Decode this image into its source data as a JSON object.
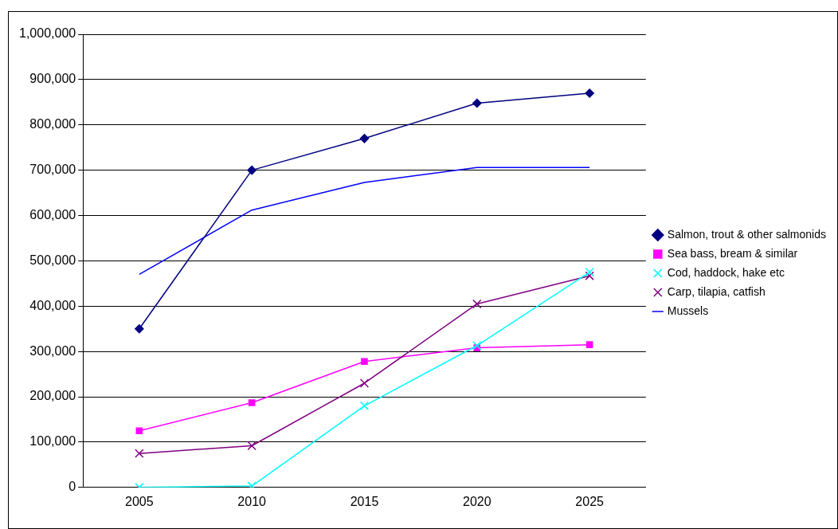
{
  "chart_data": {
    "type": "line",
    "categories": [
      "2005",
      "2010",
      "2015",
      "2020",
      "2025"
    ],
    "series": [
      {
        "name": "Salmon, trout & other salmonids",
        "color": "#000080",
        "marker": "diamond",
        "values": [
          350000,
          700000,
          770000,
          848000,
          870000
        ]
      },
      {
        "name": "Sea bass, bream & similar",
        "color": "#ff00ff",
        "marker": "square",
        "values": [
          125000,
          187000,
          278000,
          308000,
          315000
        ]
      },
      {
        "name": "Cod, haddock, hake etc",
        "color": "#00ffff",
        "marker": "cross",
        "values": [
          0,
          3000,
          180000,
          313000,
          475000
        ]
      },
      {
        "name": "Carp, tilapia, catfish",
        "color": "#800080",
        "marker": "cross",
        "values": [
          75000,
          92000,
          230000,
          405000,
          467000
        ]
      },
      {
        "name": "Mussels",
        "color": "#0000ff",
        "marker": "none",
        "values": [
          470000,
          612000,
          673000,
          706000,
          706000
        ]
      }
    ],
    "ylim": [
      0,
      1000000
    ],
    "yticks": [
      {
        "value": 0,
        "label": "0"
      },
      {
        "value": 100000,
        "label": "100,000"
      },
      {
        "value": 200000,
        "label": "200,000"
      },
      {
        "value": 300000,
        "label": "300,000"
      },
      {
        "value": 400000,
        "label": "400,000"
      },
      {
        "value": 500000,
        "label": "500,000"
      },
      {
        "value": 600000,
        "label": "600,000"
      },
      {
        "value": 700000,
        "label": "700,000"
      },
      {
        "value": 800000,
        "label": "800,000"
      },
      {
        "value": 900000,
        "label": "900,000"
      },
      {
        "value": 1000000,
        "label": "1,000,000"
      }
    ],
    "grid": "y",
    "legend": "right",
    "line_style": "solid"
  }
}
